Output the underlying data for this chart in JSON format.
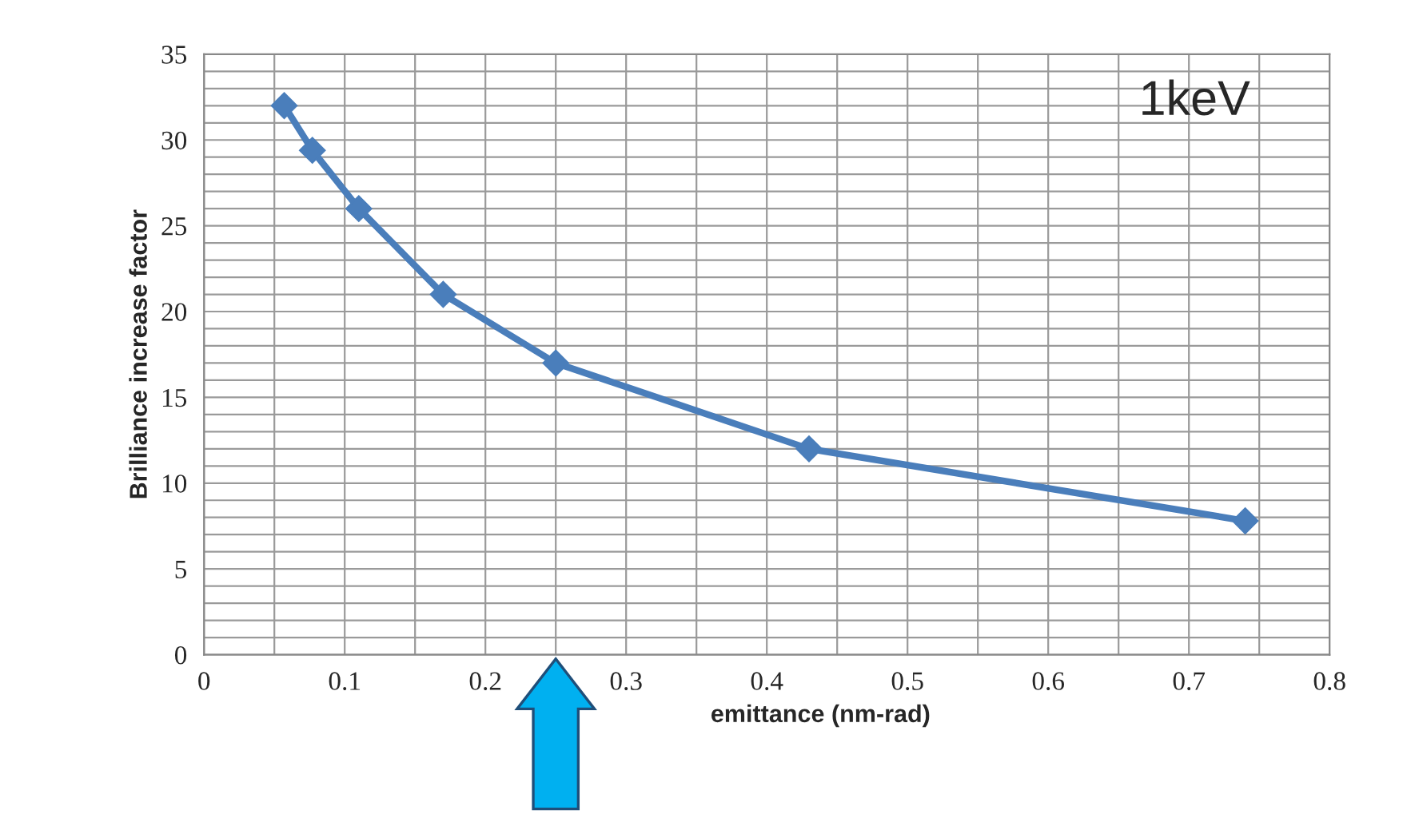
{
  "chart_data": {
    "type": "line",
    "xlabel": "emittance (nm-rad)",
    "ylabel": "Brilliance increase factor",
    "annotations": [
      "1keV"
    ],
    "x": [
      0.057,
      0.077,
      0.11,
      0.17,
      0.25,
      0.43,
      0.74
    ],
    "series": [
      {
        "color": "#4a7ebb",
        "values": [
          32,
          29.4,
          26,
          21,
          17,
          12,
          7.8
        ]
      }
    ],
    "xlim": [
      0,
      0.8
    ],
    "xticks": [
      0,
      0.1,
      0.2,
      0.3,
      0.4,
      0.5,
      0.6,
      0.7,
      0.8
    ],
    "ylim": [
      0,
      35
    ],
    "yticks": [
      0,
      5,
      10,
      15,
      20,
      25,
      30,
      35
    ],
    "grid": true,
    "marker": "diamond",
    "line_style": "solid"
  }
}
